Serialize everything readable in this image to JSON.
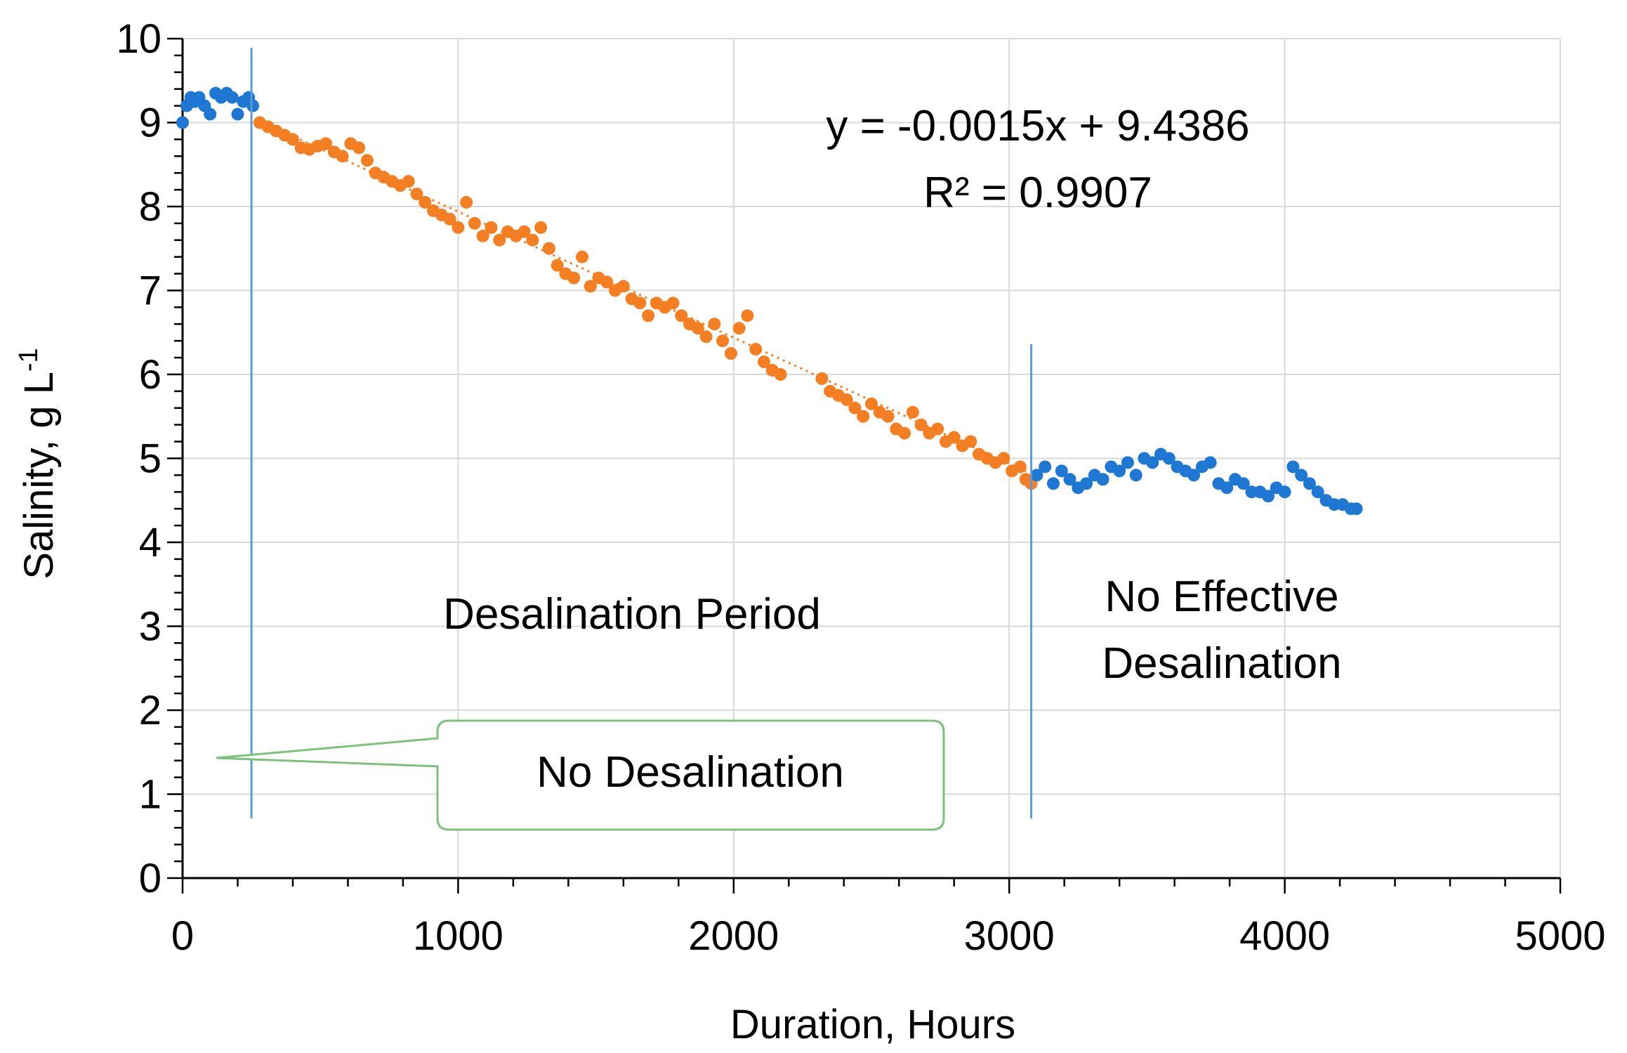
{
  "chart_data": {
    "type": "scatter",
    "xlabel": "Duration, Hours",
    "ylabel_main": "Salinity, g L",
    "ylabel_superscript": "-1",
    "xlim": [
      0,
      5000
    ],
    "ylim": [
      0,
      10
    ],
    "x_ticks": [
      0,
      1000,
      2000,
      3000,
      4000,
      5000
    ],
    "y_ticks": [
      0,
      1,
      2,
      3,
      4,
      5,
      6,
      7,
      8,
      9,
      10
    ],
    "x_minor_step": 200,
    "y_minor_step": 0.2,
    "grid": true,
    "colors": {
      "no_desal": "#1f77d4",
      "desal": "#f47f23",
      "trendline": "#f47f23",
      "divider": "#5b9bd5",
      "callout": "#7dc27a"
    },
    "series": [
      {
        "name": "No Desalination",
        "color": "#1f77d4",
        "x": [
          0,
          15,
          30,
          45,
          60,
          80,
          100,
          120,
          140,
          160,
          180,
          200,
          220,
          240,
          255
        ],
        "y": [
          9.0,
          9.2,
          9.3,
          9.25,
          9.3,
          9.2,
          9.1,
          9.35,
          9.3,
          9.35,
          9.3,
          9.1,
          9.25,
          9.3,
          9.2
        ]
      },
      {
        "name": "Desalination Period",
        "color": "#f47f23",
        "x": [
          280,
          310,
          340,
          370,
          400,
          430,
          460,
          490,
          520,
          550,
          580,
          610,
          640,
          670,
          700,
          730,
          760,
          790,
          820,
          850,
          880,
          910,
          940,
          970,
          1000,
          1030,
          1060,
          1090,
          1120,
          1150,
          1180,
          1210,
          1240,
          1270,
          1300,
          1330,
          1360,
          1390,
          1420,
          1450,
          1480,
          1510,
          1540,
          1570,
          1600,
          1630,
          1660,
          1690,
          1720,
          1750,
          1780,
          1810,
          1840,
          1870,
          1900,
          1930,
          1960,
          1990,
          2020,
          2050,
          2080,
          2110,
          2140,
          2170,
          2320,
          2350,
          2380,
          2410,
          2440,
          2470,
          2500,
          2530,
          2560,
          2590,
          2620,
          2650,
          2680,
          2710,
          2740,
          2770,
          2800,
          2830,
          2860,
          2890,
          2920,
          2950,
          2980,
          3010,
          3040,
          3060,
          3080
        ],
        "y": [
          9.0,
          8.95,
          8.9,
          8.85,
          8.8,
          8.7,
          8.68,
          8.72,
          8.75,
          8.65,
          8.6,
          8.75,
          8.7,
          8.55,
          8.4,
          8.35,
          8.3,
          8.25,
          8.3,
          8.15,
          8.05,
          7.95,
          7.9,
          7.85,
          7.75,
          8.05,
          7.8,
          7.65,
          7.75,
          7.6,
          7.7,
          7.65,
          7.7,
          7.6,
          7.75,
          7.5,
          7.3,
          7.2,
          7.15,
          7.4,
          7.05,
          7.15,
          7.1,
          7.0,
          7.05,
          6.9,
          6.85,
          6.7,
          6.85,
          6.8,
          6.85,
          6.7,
          6.6,
          6.55,
          6.45,
          6.6,
          6.4,
          6.25,
          6.55,
          6.7,
          6.3,
          6.15,
          6.05,
          6.0,
          5.95,
          5.8,
          5.75,
          5.7,
          5.6,
          5.5,
          5.65,
          5.55,
          5.5,
          5.35,
          5.3,
          5.55,
          5.4,
          5.3,
          5.35,
          5.2,
          5.25,
          5.15,
          5.2,
          5.05,
          5.0,
          4.95,
          5.0,
          4.85,
          4.9,
          4.75,
          4.7
        ]
      },
      {
        "name": "No Effective Desalination",
        "color": "#1f77d4",
        "x": [
          3100,
          3130,
          3160,
          3190,
          3220,
          3250,
          3280,
          3310,
          3340,
          3370,
          3400,
          3430,
          3460,
          3490,
          3520,
          3550,
          3580,
          3610,
          3640,
          3670,
          3700,
          3730,
          3760,
          3790,
          3820,
          3850,
          3880,
          3910,
          3940,
          3970,
          4000,
          4030,
          4060,
          4090,
          4120,
          4150,
          4180,
          4210,
          4240,
          4260
        ],
        "y": [
          4.8,
          4.9,
          4.7,
          4.85,
          4.75,
          4.65,
          4.7,
          4.8,
          4.75,
          4.9,
          4.85,
          4.95,
          4.8,
          5.0,
          4.95,
          5.05,
          5.0,
          4.9,
          4.85,
          4.8,
          4.9,
          4.95,
          4.7,
          4.65,
          4.75,
          4.7,
          4.6,
          4.6,
          4.55,
          4.65,
          4.6,
          4.9,
          4.8,
          4.7,
          4.6,
          4.5,
          4.45,
          4.45,
          4.4,
          4.4
        ]
      }
    ],
    "trendline": {
      "slope": -0.0015,
      "intercept": 9.4386,
      "x_range": [
        280,
        3080
      ]
    },
    "dividers_x": [
      250,
      3080
    ],
    "annotations": {
      "equation": "y = -0.0015x + 9.4386",
      "r_squared": "R² = 0.9907",
      "desal_period": "Desalination Period",
      "no_effective_line1": "No Effective",
      "no_effective_line2": "Desalination",
      "callout": "No Desalination"
    }
  }
}
